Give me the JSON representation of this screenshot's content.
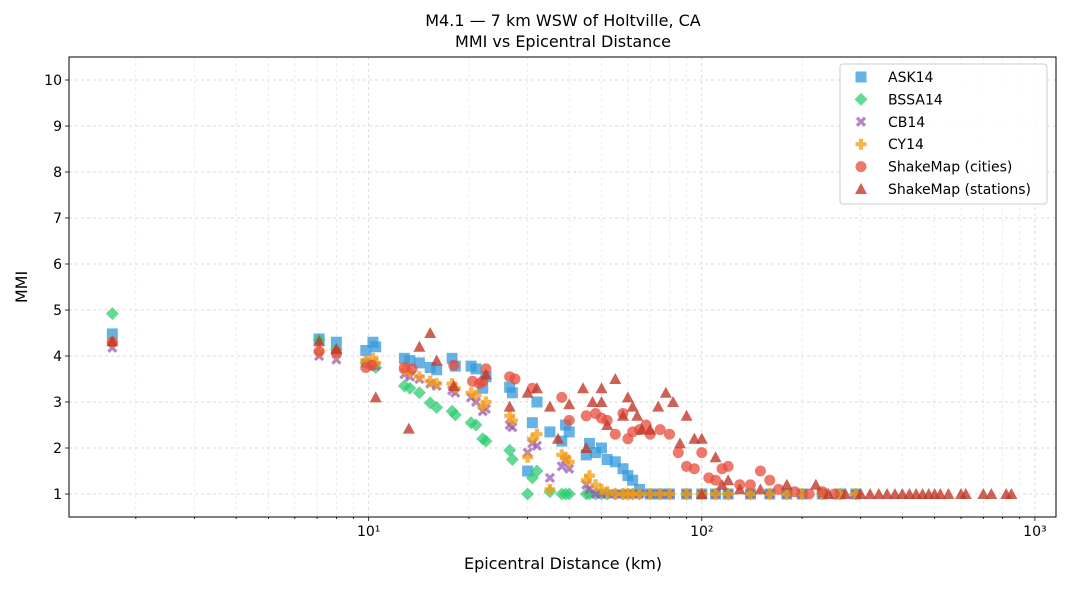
{
  "chart_data": {
    "type": "scatter",
    "title": "M4.1 — 7 km WSW of Holtville, CA",
    "subtitle": "MMI vs Epicentral Distance",
    "xlabel": "Epicentral Distance (km)",
    "ylabel": "MMI",
    "xscale": "log",
    "xlim": [
      1.26,
      1157
    ],
    "ylim": [
      0.5,
      10.5
    ],
    "xticks": [
      10,
      100,
      1000
    ],
    "xtick_labels": [
      "10¹",
      "10²",
      "10³"
    ],
    "yticks": [
      1,
      2,
      3,
      4,
      5,
      6,
      7,
      8,
      9,
      10
    ],
    "grid": true,
    "legend_position": "top-right",
    "gmpe_distances": [
      1.7,
      7.1,
      8.0,
      9.8,
      10.3,
      10.5,
      12.8,
      13.3,
      14.2,
      15.3,
      16.0,
      17.8,
      18.2,
      20.3,
      21.0,
      22.0,
      22.5,
      26.5,
      27.0,
      30.0,
      31.0,
      32.0,
      35.0,
      38.0,
      39.0,
      40.0,
      45.0,
      46.0,
      48.0,
      50.0,
      52.0,
      55.0,
      58.0,
      60.0,
      62.0,
      65.0,
      70.0,
      75.0,
      80.0,
      90.0,
      100,
      110,
      120,
      140,
      160,
      180,
      200,
      230,
      260,
      290
    ],
    "series": [
      {
        "name": "ASK14",
        "marker": "square",
        "color": "#3498db",
        "y": [
          4.48,
          4.37,
          4.3,
          4.12,
          4.3,
          4.2,
          3.95,
          3.9,
          3.85,
          3.75,
          3.7,
          3.95,
          3.78,
          3.78,
          3.72,
          3.3,
          3.55,
          3.32,
          3.2,
          1.5,
          2.55,
          3.0,
          2.35,
          2.15,
          2.5,
          2.35,
          1.85,
          2.1,
          1.9,
          2.0,
          1.75,
          1.7,
          1.55,
          1.4,
          1.3,
          1.1,
          1.0,
          1.0,
          1.0,
          1.0,
          1.0,
          1.0,
          1.0,
          1.0,
          1.0,
          1.0,
          1.0,
          1.0,
          1.0,
          1.0
        ]
      },
      {
        "name": "BSSA14",
        "marker": "diamond",
        "color": "#2ecc71",
        "y": [
          4.92,
          4.35,
          4.15,
          3.85,
          3.8,
          3.75,
          3.35,
          3.3,
          3.2,
          2.98,
          2.88,
          2.8,
          2.72,
          2.55,
          2.5,
          2.2,
          2.15,
          1.95,
          1.75,
          1.0,
          1.35,
          1.5,
          1.05,
          1.0,
          1.0,
          1.0,
          1.0,
          1.0,
          1.0,
          1.0,
          1.0,
          1.0,
          1.0,
          1.0,
          1.0,
          1.0,
          1.0,
          1.0,
          1.0,
          1.0,
          1.0,
          1.0,
          1.0,
          1.0,
          1.0,
          1.0,
          1.0,
          1.0,
          1.0,
          1.0
        ]
      },
      {
        "name": "CB14",
        "marker": "x",
        "color": "#9b59b6",
        "y": [
          4.18,
          4.0,
          3.92,
          3.85,
          3.8,
          3.78,
          3.6,
          3.55,
          3.5,
          3.4,
          3.35,
          3.25,
          3.2,
          3.1,
          3.0,
          2.8,
          2.85,
          2.5,
          2.45,
          1.9,
          2.1,
          2.05,
          1.35,
          1.6,
          1.75,
          1.55,
          1.2,
          1.1,
          1.0,
          1.0,
          1.0,
          1.0,
          1.0,
          1.0,
          1.0,
          1.0,
          1.0,
          1.0,
          1.0,
          1.0,
          1.0,
          1.0,
          1.0,
          1.0,
          1.0,
          1.0,
          1.0,
          1.0,
          1.0,
          1.0
        ]
      },
      {
        "name": "CY14",
        "marker": "plus",
        "color": "#f39c12",
        "y": [
          4.3,
          4.1,
          4.05,
          3.9,
          3.95,
          3.85,
          3.7,
          3.65,
          3.55,
          3.45,
          3.4,
          3.4,
          3.3,
          3.2,
          3.15,
          2.9,
          3.0,
          2.7,
          2.6,
          1.8,
          2.2,
          2.3,
          1.1,
          1.85,
          1.8,
          1.7,
          1.3,
          1.4,
          1.2,
          1.1,
          1.05,
          1.0,
          1.0,
          1.0,
          1.0,
          1.0,
          1.0,
          1.0,
          1.0,
          1.0,
          1.0,
          1.0,
          1.0,
          1.0,
          1.0,
          1.0,
          1.0,
          1.0,
          1.0,
          1.0
        ]
      },
      {
        "name": "ShakeMap (cities)",
        "marker": "circle",
        "color": "#e74c3c",
        "points": [
          [
            1.7,
            4.3
          ],
          [
            7.1,
            4.1
          ],
          [
            8,
            4.08
          ],
          [
            9.8,
            3.75
          ],
          [
            10.2,
            3.8
          ],
          [
            12.8,
            3.75
          ],
          [
            13.5,
            3.72
          ],
          [
            18,
            3.8
          ],
          [
            20.5,
            3.45
          ],
          [
            21.5,
            3.4
          ],
          [
            22,
            3.45
          ],
          [
            22.5,
            3.72
          ],
          [
            26.5,
            3.55
          ],
          [
            27.5,
            3.5
          ],
          [
            31,
            3.3
          ],
          [
            38,
            3.1
          ],
          [
            40,
            2.6
          ],
          [
            45,
            2.7
          ],
          [
            48,
            2.75
          ],
          [
            50,
            2.65
          ],
          [
            52,
            2.6
          ],
          [
            55,
            2.3
          ],
          [
            58,
            2.75
          ],
          [
            60,
            2.2
          ],
          [
            62,
            2.35
          ],
          [
            65,
            2.4
          ],
          [
            68,
            2.5
          ],
          [
            70,
            2.3
          ],
          [
            75,
            2.4
          ],
          [
            80,
            2.3
          ],
          [
            85,
            1.9
          ],
          [
            90,
            1.6
          ],
          [
            95,
            1.55
          ],
          [
            100,
            1.9
          ],
          [
            105,
            1.35
          ],
          [
            110,
            1.3
          ],
          [
            115,
            1.55
          ],
          [
            120,
            1.6
          ],
          [
            130,
            1.2
          ],
          [
            140,
            1.2
          ],
          [
            150,
            1.5
          ],
          [
            160,
            1.3
          ],
          [
            170,
            1.1
          ],
          [
            190,
            1.05
          ],
          [
            210,
            1.0
          ],
          [
            230,
            1.05
          ],
          [
            250,
            1.0
          ]
        ]
      },
      {
        "name": "ShakeMap (stations)",
        "marker": "triangle",
        "color": "#c0392b",
        "points": [
          [
            1.7,
            4.32
          ],
          [
            7.1,
            4.32
          ],
          [
            8,
            4.15
          ],
          [
            10.5,
            3.1
          ],
          [
            13.2,
            2.42
          ],
          [
            14.2,
            4.2
          ],
          [
            15.3,
            4.5
          ],
          [
            16,
            3.9
          ],
          [
            18,
            3.35
          ],
          [
            22.5,
            3.6
          ],
          [
            26.5,
            2.9
          ],
          [
            30,
            3.2
          ],
          [
            32,
            3.3
          ],
          [
            35,
            2.9
          ],
          [
            37,
            2.2
          ],
          [
            40,
            2.95
          ],
          [
            44,
            3.3
          ],
          [
            45,
            2.0
          ],
          [
            47,
            3.0
          ],
          [
            50,
            3.3
          ],
          [
            50,
            3.0
          ],
          [
            52,
            2.5
          ],
          [
            55,
            3.5
          ],
          [
            58,
            2.7
          ],
          [
            60,
            3.1
          ],
          [
            62,
            2.9
          ],
          [
            64,
            2.7
          ],
          [
            66,
            2.4
          ],
          [
            70,
            2.4
          ],
          [
            74,
            2.9
          ],
          [
            78,
            3.2
          ],
          [
            82,
            3.0
          ],
          [
            86,
            2.1
          ],
          [
            90,
            2.7
          ],
          [
            95,
            2.2
          ],
          [
            100,
            2.2
          ],
          [
            100,
            1.0
          ],
          [
            110,
            1.8
          ],
          [
            115,
            1.2
          ],
          [
            120,
            1.3
          ],
          [
            130,
            1.1
          ],
          [
            150,
            1.1
          ],
          [
            180,
            1.2
          ],
          [
            220,
            1.2
          ],
          [
            240,
            1.0
          ],
          [
            270,
            1.0
          ],
          [
            300,
            1.0
          ],
          [
            320,
            1.0
          ],
          [
            340,
            1.0
          ],
          [
            360,
            1.0
          ],
          [
            380,
            1.0
          ],
          [
            400,
            1.0
          ],
          [
            420,
            1.0
          ],
          [
            440,
            1.0
          ],
          [
            460,
            1.0
          ],
          [
            480,
            1.0
          ],
          [
            500,
            1.0
          ],
          [
            520,
            1.0
          ],
          [
            550,
            1.0
          ],
          [
            600,
            1.0
          ],
          [
            620,
            1.0
          ],
          [
            700,
            1.0
          ],
          [
            740,
            1.0
          ],
          [
            820,
            1.0
          ],
          [
            850,
            1.0
          ]
        ]
      }
    ]
  }
}
